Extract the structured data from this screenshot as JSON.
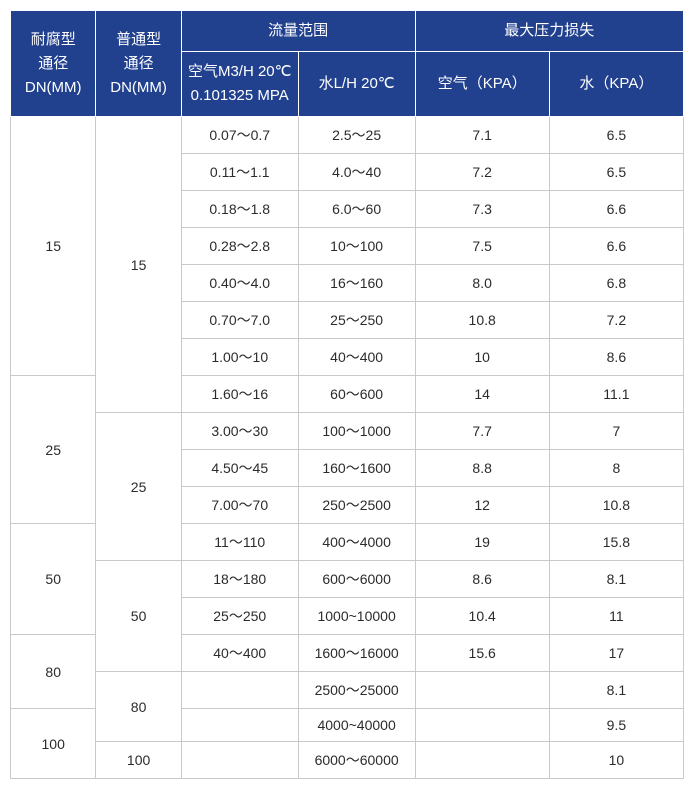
{
  "headers": {
    "corrosion_dn": "耐腐型\n通径\nDN(MM)",
    "normal_dn": "普通型\n通径\nDN(MM)",
    "flow_range": "流量范围",
    "max_pressure_loss": "最大压力损失",
    "air_m3h": "空气M3/H 20℃ 0.101325 MPA",
    "water_lh": "水L/H 20℃",
    "air_kpa": "空气（KPA）",
    "water_kpa": "水（KPA）"
  },
  "colors": {
    "header_bg": "#21418f",
    "header_text": "#ffffff",
    "header_border": "#ffffff",
    "cell_text": "#2b2b2b",
    "cell_border": "#c9c9c9",
    "cell_bg": "#ffffff"
  },
  "rows": [
    {
      "corr": "15",
      "corr_span": 7,
      "norm": "15",
      "norm_span": 8,
      "air": "0.07～0.7",
      "water": "2.5～25",
      "akpa": "7.1",
      "wkpa": "6.5"
    },
    {
      "air": "0.11～1.1",
      "water": "4.0～40",
      "akpa": "7.2",
      "wkpa": "6.5"
    },
    {
      "air": "0.18～1.8",
      "water": "6.0～60",
      "akpa": "7.3",
      "wkpa": "6.6"
    },
    {
      "air": "0.28～2.8",
      "water": "10～100",
      "akpa": "7.5",
      "wkpa": "6.6"
    },
    {
      "air": "0.40～4.0",
      "water": "16～160",
      "akpa": "8.0",
      "wkpa": "6.8"
    },
    {
      "air": "0.70～7.0",
      "water": "25～250",
      "akpa": "10.8",
      "wkpa": "7.2"
    },
    {
      "air": "1.00～10",
      "water": "40～400",
      "akpa": "10",
      "wkpa": "8.6"
    },
    {
      "corr": "25",
      "corr_span": 4,
      "air": "1.60～16",
      "water": "60～600",
      "akpa": "14",
      "wkpa": "11.1"
    },
    {
      "norm": "25",
      "norm_span": 4,
      "air": "3.00～30",
      "water": "100～1000",
      "akpa": "7.7",
      "wkpa": "7"
    },
    {
      "air": "4.50～45",
      "water": "160～1600",
      "akpa": "8.8",
      "wkpa": "8"
    },
    {
      "air": "7.00～70",
      "water": "250～2500",
      "akpa": "12",
      "wkpa": "10.8"
    },
    {
      "corr": "50",
      "corr_span": 3,
      "air": "11～110",
      "water": "400～4000",
      "akpa": "19",
      "wkpa": "15.8"
    },
    {
      "norm": "50",
      "norm_span": 3,
      "air": "18～180",
      "water": "600～6000",
      "akpa": "8.6",
      "wkpa": "8.1"
    },
    {
      "air": "25～250",
      "water": "1000~10000",
      "akpa": "10.4",
      "wkpa": "11"
    },
    {
      "corr": "80",
      "corr_span": 2,
      "air": "40～400",
      "water": "1600～16000",
      "akpa": "15.6",
      "wkpa": "17"
    },
    {
      "norm": "80",
      "norm_span": 2,
      "air": "",
      "water": "2500～25000",
      "akpa": "",
      "wkpa": "8.1"
    },
    {
      "corr": "100",
      "corr_span": 2,
      "air": "",
      "water": "4000~40000",
      "akpa": "",
      "wkpa": "9.5"
    },
    {
      "norm": "100",
      "norm_span": 1,
      "air": "",
      "water": "6000～60000",
      "akpa": "",
      "wkpa": "10"
    }
  ]
}
